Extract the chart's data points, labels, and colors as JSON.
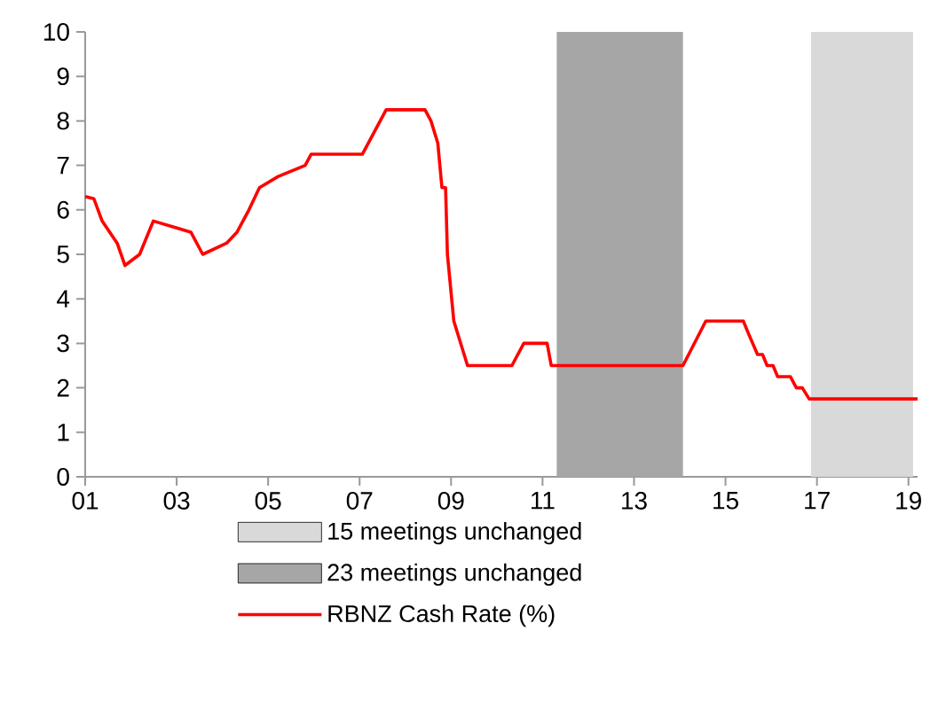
{
  "chart_data": {
    "type": "line",
    "legend": "bottom",
    "xlim": [
      2001,
      2019.2
    ],
    "ylim": [
      0,
      10
    ],
    "xticks": [
      {
        "value": 2001,
        "label": "01"
      },
      {
        "value": 2003,
        "label": "03"
      },
      {
        "value": 2005,
        "label": "05"
      },
      {
        "value": 2007,
        "label": "07"
      },
      {
        "value": 2009,
        "label": "09"
      },
      {
        "value": 2011,
        "label": "11"
      },
      {
        "value": 2013,
        "label": "13"
      },
      {
        "value": 2015,
        "label": "15"
      },
      {
        "value": 2017,
        "label": "17"
      },
      {
        "value": 2019,
        "label": "19"
      }
    ],
    "yticks": [
      0,
      1,
      2,
      3,
      4,
      5,
      6,
      7,
      8,
      9,
      10
    ],
    "bands": [
      {
        "axis": "x",
        "from": 2016.87,
        "to": 2019.1,
        "label": "15 meetings unchanged",
        "color": "#d9d9d9"
      },
      {
        "axis": "x",
        "from": 2011.31,
        "to": 2014.07,
        "label": "23 meetings unchanged",
        "color": "#a6a6a6"
      }
    ],
    "series": [
      {
        "name": "RBNZ Cash Rate (%)",
        "color": "#ff0000",
        "x": [
          2001.0,
          2001.19,
          2001.37,
          2001.7,
          2001.87,
          2002.19,
          2002.49,
          2003.31,
          2003.57,
          2004.09,
          2004.32,
          2004.58,
          2004.81,
          2005.22,
          2005.81,
          2005.94,
          2007.06,
          2007.58,
          2008.43,
          2008.56,
          2008.71,
          2008.8,
          2008.88,
          2008.92,
          2009.06,
          2009.36,
          2010.33,
          2010.59,
          2011.1,
          2011.19,
          2014.07,
          2014.57,
          2015.39,
          2015.49,
          2015.7,
          2015.81,
          2015.91,
          2016.04,
          2016.14,
          2016.42,
          2016.55,
          2016.68,
          2016.83,
          2019.2
        ],
        "values": [
          6.3,
          6.25,
          5.75,
          5.25,
          4.75,
          5.0,
          5.75,
          5.5,
          5.0,
          5.25,
          5.5,
          6.0,
          6.5,
          6.75,
          7.0,
          7.25,
          7.25,
          8.25,
          8.25,
          8.0,
          7.5,
          6.5,
          6.5,
          5.0,
          3.5,
          2.5,
          2.5,
          3.0,
          3.0,
          2.5,
          2.5,
          3.5,
          3.5,
          3.25,
          2.75,
          2.75,
          2.5,
          2.5,
          2.25,
          2.25,
          2.0,
          2.0,
          1.75,
          1.75
        ]
      }
    ]
  }
}
